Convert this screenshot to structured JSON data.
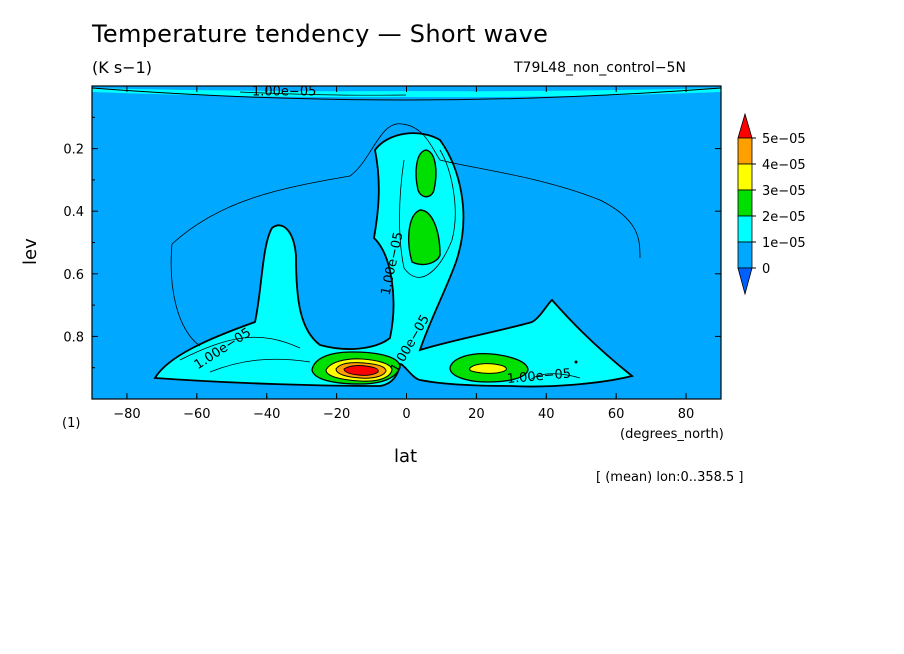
{
  "chart_data": {
    "type": "heatmap",
    "subtype": "filled-contour",
    "title": "Temperature tendency — Short wave",
    "units": "(K s−1)",
    "run_name": "T79L48_non_control−5N",
    "xlabel": "lat",
    "ylabel": "lev",
    "x_units": "(degrees_north)",
    "y_units": "(1)",
    "footnote": "[ (mean) lon:0..358.5 ]",
    "xlim": [
      -90,
      90
    ],
    "ylim": [
      1.0,
      0.0
    ],
    "x_ticks": [
      {
        "value": -80,
        "label": "−80"
      },
      {
        "value": -60,
        "label": "−60"
      },
      {
        "value": -40,
        "label": "−40"
      },
      {
        "value": -20,
        "label": "−20"
      },
      {
        "value": 0,
        "label": "0"
      },
      {
        "value": 20,
        "label": "20"
      },
      {
        "value": 40,
        "label": "40"
      },
      {
        "value": 60,
        "label": "60"
      },
      {
        "value": 80,
        "label": "80"
      }
    ],
    "y_ticks": [
      {
        "value": 0.2,
        "label": "0.2"
      },
      {
        "value": 0.4,
        "label": "0.4"
      },
      {
        "value": 0.6,
        "label": "0.6"
      },
      {
        "value": 0.8,
        "label": "0.8"
      }
    ],
    "colorbar": {
      "levels": [
        {
          "label": "0",
          "color": "#00a8ff"
        },
        {
          "label": "1e−05",
          "color": "#00ffff"
        },
        {
          "label": "2e−05",
          "color": "#00e000"
        },
        {
          "label": "3e−05",
          "color": "#ffff00"
        },
        {
          "label": "4e−05",
          "color": "#ffa000"
        },
        {
          "label": "5e−05",
          "color": "#ff0000"
        }
      ],
      "below_color": "#0060ff",
      "above_color": "#ff0000"
    },
    "contour_labels": [
      {
        "text": "1.00e−05",
        "lat": -52,
        "lev": 0.85,
        "angle": -33
      },
      {
        "text": "1.00e−05",
        "lat": -3,
        "lev": 0.57,
        "angle": -78
      },
      {
        "text": "1.00e−05",
        "lat": 2,
        "lev": 0.83,
        "angle": -60
      },
      {
        "text": "1.00e−05",
        "lat": 38,
        "lev": 0.94,
        "angle": -5
      },
      {
        "text": "1.00e−05",
        "lat": -35,
        "lev": 0.03,
        "angle": 0
      }
    ],
    "regions": [
      {
        "name": "background",
        "level": "0",
        "lat_range": [
          -90,
          90
        ],
        "lev_range": [
          0.0,
          1.0
        ]
      },
      {
        "name": "upper-band",
        "level": "1e−05",
        "lat_range": [
          -72,
          90
        ],
        "lev_range": [
          0.0,
          0.02
        ]
      },
      {
        "name": "sh-lower-tongue",
        "level": "1e−05",
        "lat_range": [
          -65,
          -5
        ],
        "lev_range": [
          0.43,
          0.97
        ]
      },
      {
        "name": "tropical-column",
        "level": "1e−05",
        "lat_range": [
          -10,
          18
        ],
        "lev_range": [
          0.15,
          0.93
        ]
      },
      {
        "name": "nh-lower-hill",
        "level": "1e−05",
        "lat_range": [
          12,
          68
        ],
        "lev_range": [
          0.68,
          0.94
        ]
      },
      {
        "name": "upper-tropical-max",
        "level": "2e−05",
        "lat_range": [
          2,
          9
        ],
        "lev_range": [
          0.22,
          0.35
        ]
      },
      {
        "name": "mid-tropical-max",
        "level": "2e−05",
        "lat_range": [
          0,
          10
        ],
        "lev_range": [
          0.4,
          0.57
        ]
      },
      {
        "name": "sh-lowlevel-max",
        "level": "5e−05",
        "lat_range": [
          -28,
          -2
        ],
        "lev_range": [
          0.86,
          0.95
        ]
      },
      {
        "name": "nh-lowlevel-max",
        "level": "3e−05",
        "lat_range": [
          12,
          35
        ],
        "lev_range": [
          0.86,
          0.94
        ]
      }
    ]
  }
}
